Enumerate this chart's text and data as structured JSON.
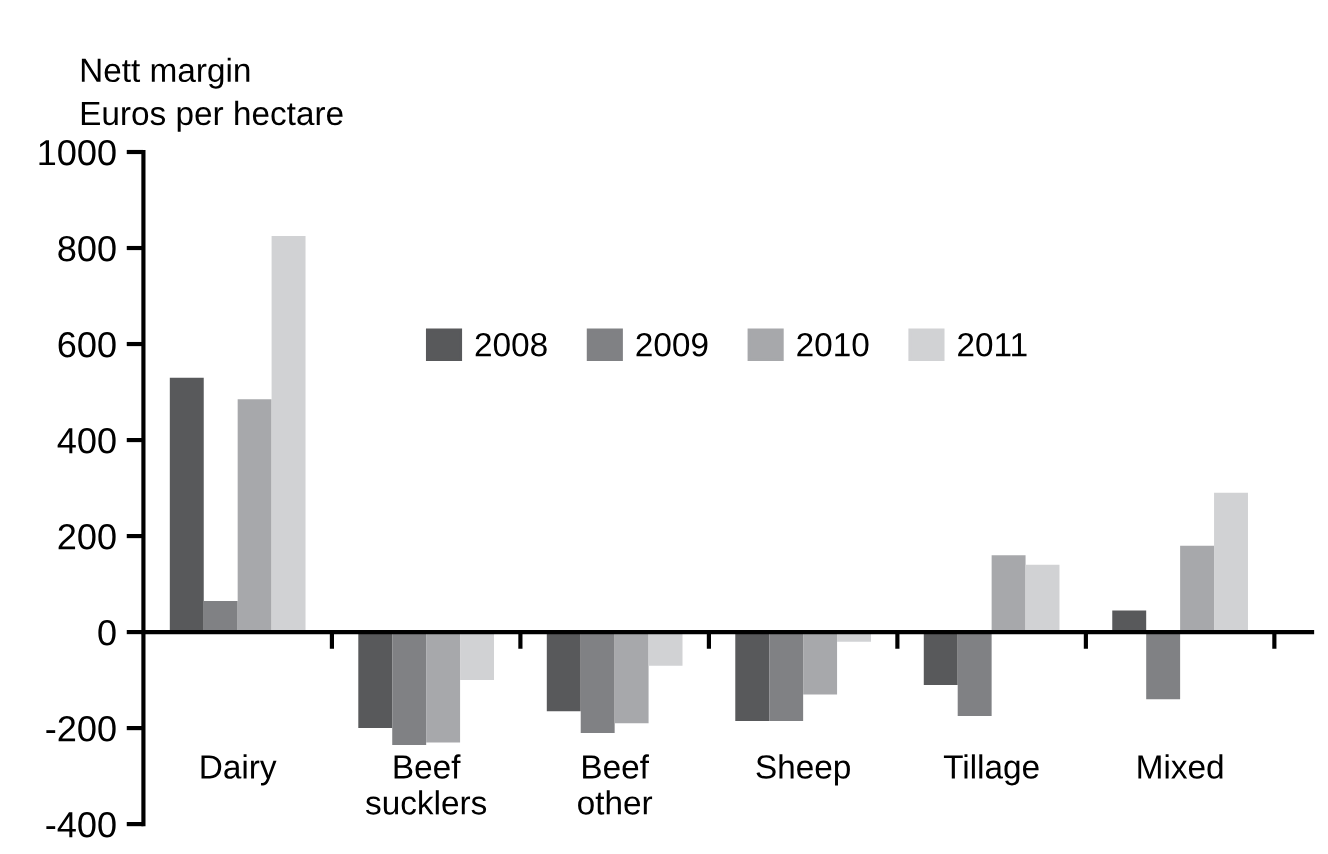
{
  "chart_data": {
    "type": "bar",
    "ylabel": "Nett margin\nEuros per hectare",
    "categories": [
      "Dairy",
      "Beef\nsucklers",
      "Beef\nother",
      "Sheep",
      "Tillage",
      "Mixed"
    ],
    "series": [
      {
        "name": "2008",
        "color": "#58595b",
        "values": [
          530,
          -200,
          -165,
          -185,
          -110,
          45
        ]
      },
      {
        "name": "2009",
        "color": "#808184",
        "values": [
          65,
          -235,
          -210,
          -185,
          -175,
          -140
        ]
      },
      {
        "name": "2010",
        "color": "#a7a8ab",
        "values": [
          485,
          -230,
          -190,
          -130,
          160,
          180
        ]
      },
      {
        "name": "2011",
        "color": "#d1d2d4",
        "values": [
          825,
          -100,
          -70,
          -20,
          140,
          290
        ]
      }
    ],
    "ylim": [
      -400,
      1000
    ],
    "yticks": [
      -400,
      -200,
      0,
      200,
      400,
      600,
      800,
      1000
    ],
    "legend": "top"
  }
}
